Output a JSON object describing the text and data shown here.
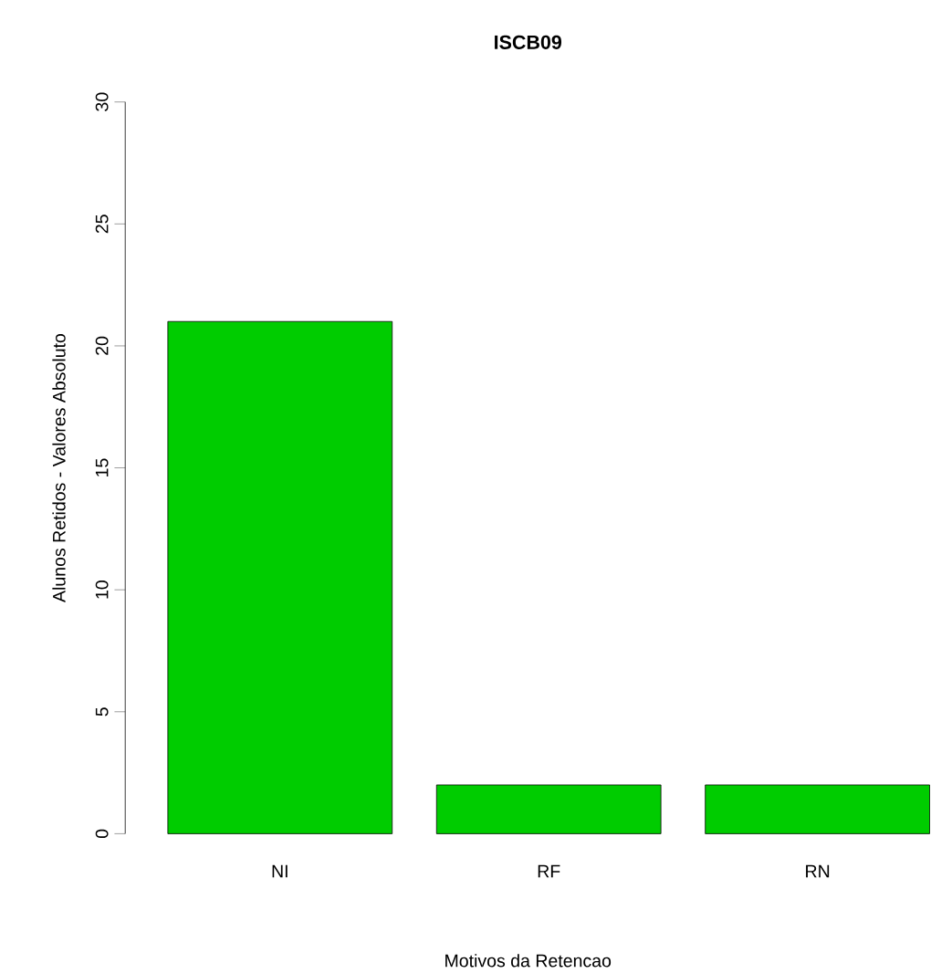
{
  "chart_data": {
    "type": "bar",
    "title": "ISCB09",
    "xlabel": "Motivos da Retencao",
    "ylabel": "Alunos Retidos - Valores Absoluto",
    "categories": [
      "NI",
      "RF",
      "RN"
    ],
    "values": [
      21,
      2,
      2
    ],
    "color": "#00cc00",
    "ylim": [
      0,
      30
    ],
    "yticks": [
      0,
      5,
      10,
      15,
      20,
      25,
      30
    ]
  }
}
